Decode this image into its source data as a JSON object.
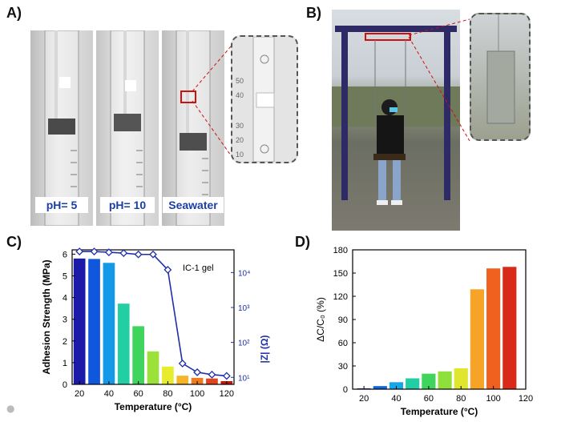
{
  "panels": {
    "a": {
      "label": "A)",
      "tags": [
        "pH= 5",
        "pH= 10",
        "Seawater"
      ],
      "inset_ticks": [
        "50",
        "40",
        "30",
        "20",
        "10"
      ]
    },
    "b": {
      "label": "B)"
    },
    "c": {
      "label": "C)"
    },
    "d": {
      "label": "D)"
    }
  },
  "colors": {
    "tag_text": "#1a3ea8",
    "line": "#1f2fa8",
    "dash_box": "#555555",
    "highlight": "#cc1111"
  },
  "chart_data": [
    {
      "type": "bar",
      "panel": "C",
      "annotation": "IC-1 gel",
      "xlabel": "Temperature (°C)",
      "ylabel": "Adhesion Strength (MPa)",
      "y2label": "|Z| (Ω)",
      "x": [
        20,
        30,
        40,
        50,
        60,
        70,
        80,
        90,
        100,
        110,
        120
      ],
      "values": [
        5.8,
        5.78,
        5.6,
        3.72,
        2.68,
        1.52,
        0.82,
        0.4,
        0.3,
        0.27,
        0.15
      ],
      "xlim": [
        15,
        125
      ],
      "ylim": [
        0,
        6.2
      ],
      "yticks": [
        0,
        1,
        2,
        3,
        4,
        5,
        6
      ],
      "xticks": [
        20,
        40,
        60,
        80,
        100,
        120
      ],
      "line_series": {
        "axis": "right-log",
        "x": [
          20,
          30,
          40,
          50,
          60,
          70,
          80,
          90,
          100,
          110,
          120
        ],
        "values": [
          40000,
          40000,
          38000,
          36000,
          33000,
          33000,
          12000,
          25,
          14,
          12,
          11
        ],
        "ylim_log10": [
          0.8,
          4.65
        ],
        "yticks": [
          "10¹",
          "10²",
          "10³",
          "10⁴"
        ],
        "ytick_values": [
          10,
          100,
          1000,
          10000
        ]
      },
      "bar_colors": [
        "#1c1aa8",
        "#0f57dd",
        "#1499e8",
        "#22cfa5",
        "#3fd45c",
        "#9be13a",
        "#e7ec2d",
        "#f6b428",
        "#f07a20",
        "#e0441b",
        "#c2160f"
      ]
    },
    {
      "type": "bar",
      "panel": "D",
      "xlabel": "Temperature (°C)",
      "ylabel": "ΔC/C₀ (%)",
      "x": [
        20,
        30,
        40,
        50,
        60,
        70,
        80,
        90,
        100,
        110
      ],
      "values": [
        1,
        4,
        9,
        14,
        20,
        23,
        27,
        129,
        156,
        158
      ],
      "xlim": [
        13,
        120
      ],
      "ylim": [
        0,
        180
      ],
      "yticks": [
        0,
        30,
        60,
        90,
        120,
        150,
        180
      ],
      "xticks": [
        20,
        40,
        60,
        80,
        100,
        120
      ],
      "bar_colors": [
        "#1c1aa8",
        "#1166dd",
        "#14a6e8",
        "#22cfa5",
        "#3fd45c",
        "#8fe03b",
        "#e0e62e",
        "#f6a328",
        "#f0601f",
        "#d82a17"
      ]
    }
  ]
}
